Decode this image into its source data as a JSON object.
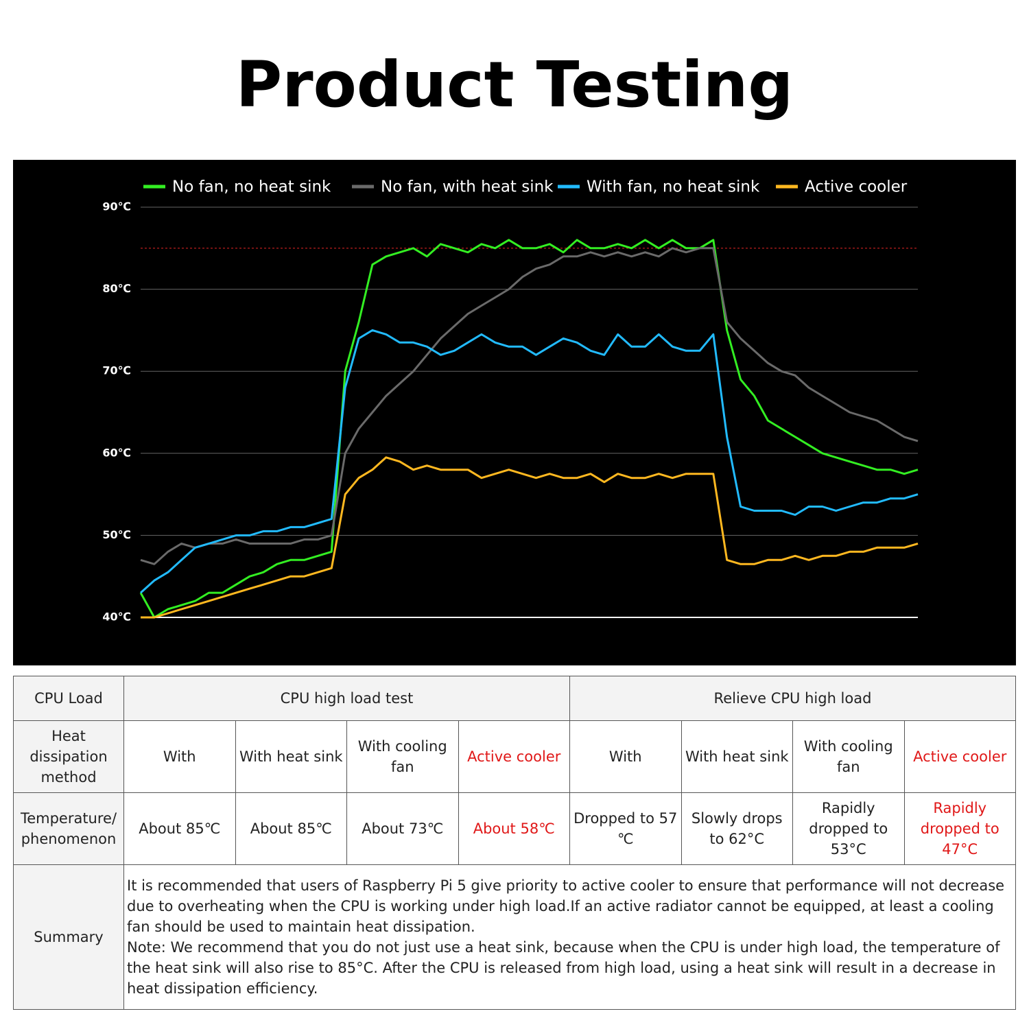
{
  "title": "Product Testing",
  "chart_data": {
    "type": "line",
    "categories": [
      null,
      null,
      null,
      null,
      null,
      null,
      null,
      null,
      null,
      null,
      null,
      null,
      null,
      null,
      null,
      null,
      null,
      null,
      null,
      null,
      null,
      null,
      null,
      null,
      null,
      null,
      null,
      null,
      null,
      null,
      null,
      null,
      null,
      null,
      null,
      null,
      null,
      null,
      null,
      null,
      null,
      null,
      null,
      null,
      null,
      null,
      null,
      null,
      null,
      null,
      null,
      null,
      null,
      null,
      null,
      null,
      null,
      null
    ],
    "series": [
      {
        "name": "No fan, no heat sink",
        "color": "#33ee22",
        "values": [
          43,
          40,
          41,
          41.5,
          42,
          43,
          43,
          44,
          45,
          45.5,
          46.5,
          47,
          47,
          47.5,
          48,
          70,
          76,
          83,
          84,
          84.5,
          85,
          84,
          85.5,
          85,
          84.5,
          85.5,
          85,
          86,
          85,
          85,
          85.5,
          84.5,
          86,
          85,
          85,
          85.5,
          85,
          86,
          85,
          86,
          85,
          85,
          86,
          75,
          69,
          67,
          64,
          63,
          62,
          61,
          60,
          59.5,
          59,
          58.5,
          58,
          58,
          57.5,
          58
        ]
      },
      {
        "name": "No fan, with heat sink",
        "color": "#6a6a6a",
        "values": [
          47,
          46.5,
          48,
          49,
          48.5,
          49,
          49,
          49.5,
          49,
          49,
          49,
          49,
          49.5,
          49.5,
          50,
          60,
          63,
          65,
          67,
          68.5,
          70,
          72,
          74,
          75.5,
          77,
          78,
          79,
          80,
          81.5,
          82.5,
          83,
          84,
          84,
          84.5,
          84,
          84.5,
          84,
          84.5,
          84,
          85,
          84.5,
          85,
          85,
          76,
          74,
          72.5,
          71,
          70,
          69.5,
          68,
          67,
          66,
          65,
          64.5,
          64,
          63,
          62,
          61.5
        ]
      },
      {
        "name": "With fan, no heat sink",
        "color": "#22bbff",
        "values": [
          43,
          44.5,
          45.5,
          47,
          48.5,
          49,
          49.5,
          50,
          50,
          50.5,
          50.5,
          51,
          51,
          51.5,
          52,
          68,
          74,
          75,
          74.5,
          73.5,
          73.5,
          73,
          72,
          72.5,
          73.5,
          74.5,
          73.5,
          73,
          73,
          72,
          73,
          74,
          73.5,
          72.5,
          72,
          74.5,
          73,
          73,
          74.5,
          73,
          72.5,
          72.5,
          74.5,
          62,
          53.5,
          53,
          53,
          53,
          52.5,
          53.5,
          53.5,
          53,
          53.5,
          54,
          54,
          54.5,
          54.5,
          55
        ]
      },
      {
        "name": "Active cooler",
        "color": "#ffb820",
        "values": [
          40,
          40,
          40.5,
          41,
          41.5,
          42,
          42.5,
          43,
          43.5,
          44,
          44.5,
          45,
          45,
          45.5,
          46,
          55,
          57,
          58,
          59.5,
          59,
          58,
          58.5,
          58,
          58,
          58,
          57,
          57.5,
          58,
          57.5,
          57,
          57.5,
          57,
          57,
          57.5,
          56.5,
          57.5,
          57,
          57,
          57.5,
          57,
          57.5,
          57.5,
          57.5,
          47,
          46.5,
          46.5,
          47,
          47,
          47.5,
          47,
          47.5,
          47.5,
          48,
          48,
          48.5,
          48.5,
          48.5,
          49
        ]
      }
    ],
    "ylim": [
      40,
      90
    ],
    "yticks": [
      {
        "value": 40,
        "label": "40℃"
      },
      {
        "value": 50,
        "label": "50℃"
      },
      {
        "value": 60,
        "label": "60℃"
      },
      {
        "value": 70,
        "label": "70℃"
      },
      {
        "value": 80,
        "label": "80℃"
      },
      {
        "value": 90,
        "label": "90℃"
      }
    ],
    "grid": true,
    "threshold": 85,
    "threshold_color": "#d02020",
    "legend": "top"
  },
  "table": {
    "header": [
      "CPU Load",
      "CPU high load test",
      "Relieve CPU high load"
    ],
    "rows": [
      [
        "Heat dissipation method",
        "With",
        "With heat sink",
        "With cooling fan",
        "Active cooler",
        "With",
        "With heat sink",
        "With cooling fan",
        "Active cooler"
      ],
      [
        "Temperature/ phenomenon",
        "About 85℃",
        "About 85℃",
        "About 73℃",
        "About 58℃",
        "Dropped to 57 ℃",
        "Slowly drops to 62°C",
        "Rapidly dropped to 53°C",
        "Rapidly dropped to 47°C"
      ]
    ],
    "summary": {
      "label": "Summary",
      "paragraphs": [
        "It is recommended that users of Raspberry Pi 5 give priority to active cooler to ensure that performance will not decrease due to overheating when the CPU is working under high load.If an active radiator cannot be equipped, at least a cooling fan should be used to maintain heat dissipation.",
        "Note: We recommend that you do not just use a heat sink, because when the CPU is under high load, the temperature of the heat sink will also rise to 85°C. After the CPU is released from high load, using a heat sink will result in a decrease in heat dissipation efficiency."
      ]
    }
  }
}
